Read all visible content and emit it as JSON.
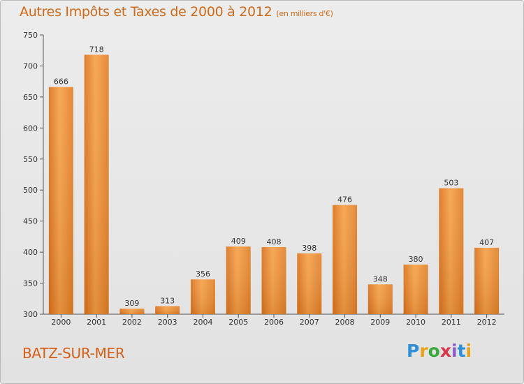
{
  "title": "Autres Impôts et Taxes de 2000 à 2012",
  "subtitle": "(en milliers d'€)",
  "location": "BATZ-SUR-MER",
  "logo": {
    "letters": [
      "P",
      "r",
      "o",
      "x",
      "i",
      "t",
      "i"
    ],
    "colors": [
      "#2f8fd6",
      "#e8a317",
      "#3aa83a",
      "#d9364b",
      "#8a5cc8",
      "#2f8fd6",
      "#e8a317"
    ]
  },
  "chart_data": {
    "type": "bar",
    "title": "Autres Impôts et Taxes de 2000 à 2012",
    "categories": [
      "2000",
      "2001",
      "2002",
      "2003",
      "2004",
      "2005",
      "2006",
      "2007",
      "2008",
      "2009",
      "2010",
      "2011",
      "2012"
    ],
    "values": [
      666,
      718,
      309,
      313,
      356,
      409,
      408,
      398,
      476,
      348,
      380,
      503,
      407
    ],
    "ylim": [
      300,
      750
    ],
    "yticks": [
      300,
      350,
      400,
      450,
      500,
      550,
      600,
      650,
      700,
      750
    ],
    "bar_color": "#f29a3c",
    "grid": false,
    "xlabel": "",
    "ylabel": ""
  }
}
